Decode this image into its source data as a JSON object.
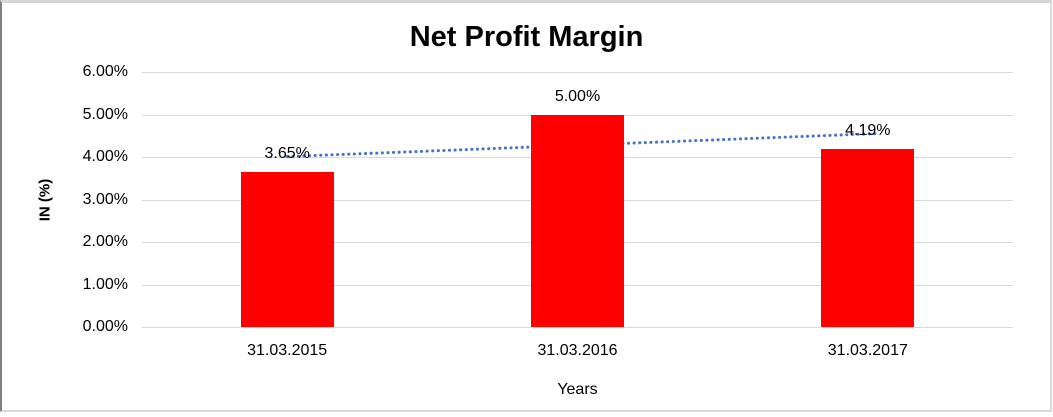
{
  "chart_data": {
    "type": "bar",
    "title": "Net Profit Margin",
    "categories": [
      "31.03.2015",
      "31.03.2016",
      "31.03.2017"
    ],
    "values": [
      3.65,
      5.0,
      4.19
    ],
    "data_labels": [
      "3.65%",
      "5.00%",
      "4.19%"
    ],
    "xlabel": "Years",
    "ylabel": "IN (%)",
    "ylim": [
      0,
      6
    ],
    "ytick_values": [
      0,
      1,
      2,
      3,
      4,
      5,
      6
    ],
    "ytick_labels": [
      "0.00%",
      "1.00%",
      "2.00%",
      "3.00%",
      "4.00%",
      "5.00%",
      "6.00%"
    ],
    "grid": true,
    "legend": "none",
    "colors": {
      "bar": "#FF0000",
      "trendline": "#4472C4",
      "gridline": "#D9D9D9",
      "text": "#000000"
    },
    "trendline": {
      "type": "linear",
      "style": "dotted",
      "start_value": 4.01,
      "end_value": 4.55
    }
  }
}
